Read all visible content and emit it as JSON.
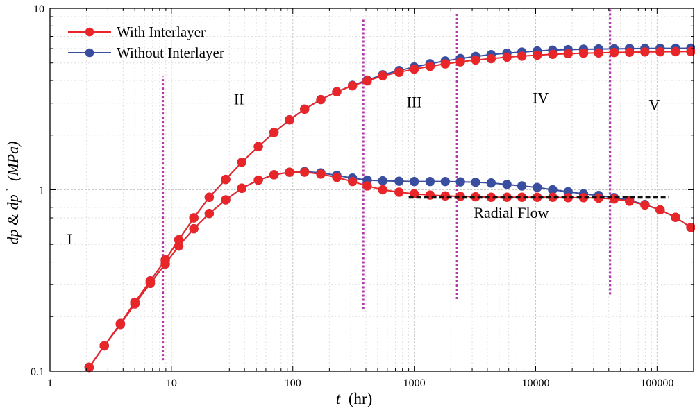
{
  "chart_data": {
    "type": "line",
    "title": "",
    "xlabel_var": "t",
    "xlabel_unit": "(hr)",
    "ylabel_main": "dp & dp",
    "ylabel_prime": "'",
    "ylabel_unit": "(MPa)",
    "xscale": "log",
    "yscale": "log",
    "xlim": [
      1,
      200000
    ],
    "ylim": [
      0.1,
      10
    ],
    "grid": true,
    "legend_position": "top-left",
    "xticks": [
      {
        "value": 1,
        "label": "1"
      },
      {
        "value": 10,
        "label": "10"
      },
      {
        "value": 100,
        "label": "100"
      },
      {
        "value": 1000,
        "label": "1000"
      },
      {
        "value": 10000,
        "label": "10000"
      },
      {
        "value": 100000,
        "label": "100000"
      }
    ],
    "yticks": [
      {
        "value": 0.1,
        "label": "0.1"
      },
      {
        "value": 1,
        "label": "1"
      },
      {
        "value": 10,
        "label": "10"
      }
    ],
    "series": [
      {
        "name": "With Interlayer",
        "color": "#e8262a",
        "curves": [
          {
            "kind": "pressure",
            "points": [
              [
                2.1,
                0.105
              ],
              [
                2.8,
                0.138
              ],
              [
                3.8,
                0.183
              ],
              [
                5.0,
                0.24
              ],
              [
                6.7,
                0.315
              ],
              [
                8.9,
                0.41
              ],
              [
                11.5,
                0.53
              ],
              [
                15.3,
                0.7
              ],
              [
                20.5,
                0.91
              ],
              [
                28,
                1.14
              ],
              [
                38,
                1.42
              ],
              [
                52,
                1.73
              ],
              [
                70,
                2.07
              ],
              [
                94,
                2.43
              ],
              [
                125,
                2.78
              ],
              [
                170,
                3.14
              ],
              [
                230,
                3.47
              ],
              [
                310,
                3.74
              ],
              [
                410,
                3.98
              ],
              [
                550,
                4.24
              ],
              [
                750,
                4.44
              ],
              [
                1000,
                4.62
              ],
              [
                1350,
                4.79
              ],
              [
                1800,
                4.94
              ],
              [
                2400,
                5.07
              ],
              [
                3200,
                5.19
              ],
              [
                4300,
                5.28
              ],
              [
                5800,
                5.38
              ],
              [
                7700,
                5.45
              ],
              [
                10300,
                5.52
              ],
              [
                13800,
                5.58
              ],
              [
                18500,
                5.62
              ],
              [
                24800,
                5.66
              ],
              [
                33000,
                5.68
              ],
              [
                44300,
                5.71
              ],
              [
                59300,
                5.73
              ],
              [
                79400,
                5.75
              ],
              [
                106000,
                5.76
              ],
              [
                142000,
                5.77
              ],
              [
                190000,
                5.78
              ]
            ]
          },
          {
            "kind": "derivative",
            "points": [
              [
                2.1,
                0.105
              ],
              [
                2.8,
                0.138
              ],
              [
                3.8,
                0.181
              ],
              [
                5.0,
                0.235
              ],
              [
                6.7,
                0.305
              ],
              [
                8.9,
                0.39
              ],
              [
                11.5,
                0.49
              ],
              [
                15.3,
                0.61
              ],
              [
                20.5,
                0.74
              ],
              [
                28,
                0.88
              ],
              [
                38,
                1.02
              ],
              [
                52,
                1.13
              ],
              [
                70,
                1.21
              ],
              [
                94,
                1.25
              ],
              [
                125,
                1.25
              ],
              [
                170,
                1.22
              ],
              [
                230,
                1.17
              ],
              [
                310,
                1.11
              ],
              [
                410,
                1.05
              ],
              [
                550,
                1.0
              ],
              [
                750,
                0.97
              ],
              [
                1000,
                0.95
              ],
              [
                1350,
                0.935
              ],
              [
                1800,
                0.925
              ],
              [
                2400,
                0.92
              ],
              [
                3200,
                0.915
              ],
              [
                4300,
                0.91
              ],
              [
                5800,
                0.91
              ],
              [
                7700,
                0.91
              ],
              [
                10300,
                0.91
              ],
              [
                13800,
                0.91
              ],
              [
                18500,
                0.905
              ],
              [
                24800,
                0.905
              ],
              [
                33000,
                0.9
              ],
              [
                44300,
                0.89
              ],
              [
                59300,
                0.865
              ],
              [
                79400,
                0.825
              ],
              [
                106000,
                0.775
              ],
              [
                142000,
                0.705
              ],
              [
                190000,
                0.62
              ]
            ]
          }
        ]
      },
      {
        "name": "Without Interlayer",
        "color": "#3a4ea0",
        "curves": [
          {
            "kind": "pressure",
            "points": [
              [
                2.1,
                0.105
              ],
              [
                2.8,
                0.138
              ],
              [
                3.8,
                0.183
              ],
              [
                5.0,
                0.24
              ],
              [
                6.7,
                0.315
              ],
              [
                8.9,
                0.41
              ],
              [
                11.5,
                0.53
              ],
              [
                15.3,
                0.7
              ],
              [
                20.5,
                0.91
              ],
              [
                28,
                1.14
              ],
              [
                38,
                1.42
              ],
              [
                52,
                1.73
              ],
              [
                70,
                2.07
              ],
              [
                94,
                2.43
              ],
              [
                125,
                2.78
              ],
              [
                170,
                3.14
              ],
              [
                230,
                3.47
              ],
              [
                310,
                3.76
              ],
              [
                410,
                4.02
              ],
              [
                550,
                4.3
              ],
              [
                750,
                4.54
              ],
              [
                1000,
                4.75
              ],
              [
                1350,
                4.95
              ],
              [
                1800,
                5.13
              ],
              [
                2400,
                5.29
              ],
              [
                3200,
                5.43
              ],
              [
                4300,
                5.56
              ],
              [
                5800,
                5.66
              ],
              [
                7700,
                5.74
              ],
              [
                10300,
                5.82
              ],
              [
                13800,
                5.88
              ],
              [
                18500,
                5.92
              ],
              [
                24800,
                5.95
              ],
              [
                33000,
                5.97
              ],
              [
                44300,
                5.98
              ],
              [
                59300,
                6.0
              ],
              [
                79400,
                6.01
              ],
              [
                106000,
                6.02
              ],
              [
                142000,
                6.02
              ],
              [
                190000,
                6.03
              ]
            ]
          },
          {
            "kind": "derivative",
            "points": [
              [
                2.1,
                0.105
              ],
              [
                2.8,
                0.138
              ],
              [
                3.8,
                0.181
              ],
              [
                5.0,
                0.235
              ],
              [
                6.7,
                0.305
              ],
              [
                8.9,
                0.39
              ],
              [
                11.5,
                0.49
              ],
              [
                15.3,
                0.61
              ],
              [
                20.5,
                0.74
              ],
              [
                28,
                0.88
              ],
              [
                38,
                1.02
              ],
              [
                52,
                1.13
              ],
              [
                70,
                1.21
              ],
              [
                94,
                1.25
              ],
              [
                125,
                1.26
              ],
              [
                170,
                1.24
              ],
              [
                230,
                1.2
              ],
              [
                310,
                1.16
              ],
              [
                410,
                1.13
              ],
              [
                550,
                1.12
              ],
              [
                750,
                1.115
              ],
              [
                1000,
                1.11
              ],
              [
                1350,
                1.11
              ],
              [
                1800,
                1.11
              ],
              [
                2400,
                1.105
              ],
              [
                3200,
                1.1
              ],
              [
                4300,
                1.09
              ],
              [
                5800,
                1.07
              ],
              [
                7700,
                1.05
              ],
              [
                10300,
                1.03
              ],
              [
                13800,
                1.0
              ],
              [
                18500,
                0.975
              ],
              [
                24800,
                0.95
              ],
              [
                33000,
                0.93
              ],
              [
                44300,
                0.905
              ],
              [
                59300,
                0.875
              ],
              [
                79400,
                0.83
              ],
              [
                106000,
                0.775
              ],
              [
                142000,
                0.705
              ],
              [
                190000,
                0.62
              ]
            ]
          }
        ]
      }
    ],
    "vertical_lines": [
      {
        "x": 8.5,
        "y_from": 0.115,
        "y_to": 4.2,
        "color": "#b03aa8"
      },
      {
        "x": 380,
        "y_from": 0.22,
        "y_to": 8.8,
        "color": "#b03aa8"
      },
      {
        "x": 2250,
        "y_from": 0.25,
        "y_to": 9.5,
        "color": "#b03aa8"
      },
      {
        "x": 41000,
        "y_from": 0.265,
        "y_to": 10,
        "color": "#b03aa8"
      }
    ],
    "radial_flow_line": {
      "x_from": 900,
      "x_to": 125000,
      "y": 0.91,
      "color": "#111111"
    },
    "annotations": [
      {
        "text": "I",
        "x": 1.45,
        "y": 0.5
      },
      {
        "text": "II",
        "x": 36,
        "y": 2.95
      },
      {
        "text": "III",
        "x": 1000,
        "y": 2.85
      },
      {
        "text": "IV",
        "x": 11000,
        "y": 3.0
      },
      {
        "text": "V",
        "x": 95000,
        "y": 2.75
      },
      {
        "text": "Radial Flow",
        "x": 6300,
        "y": 0.7
      }
    ]
  }
}
